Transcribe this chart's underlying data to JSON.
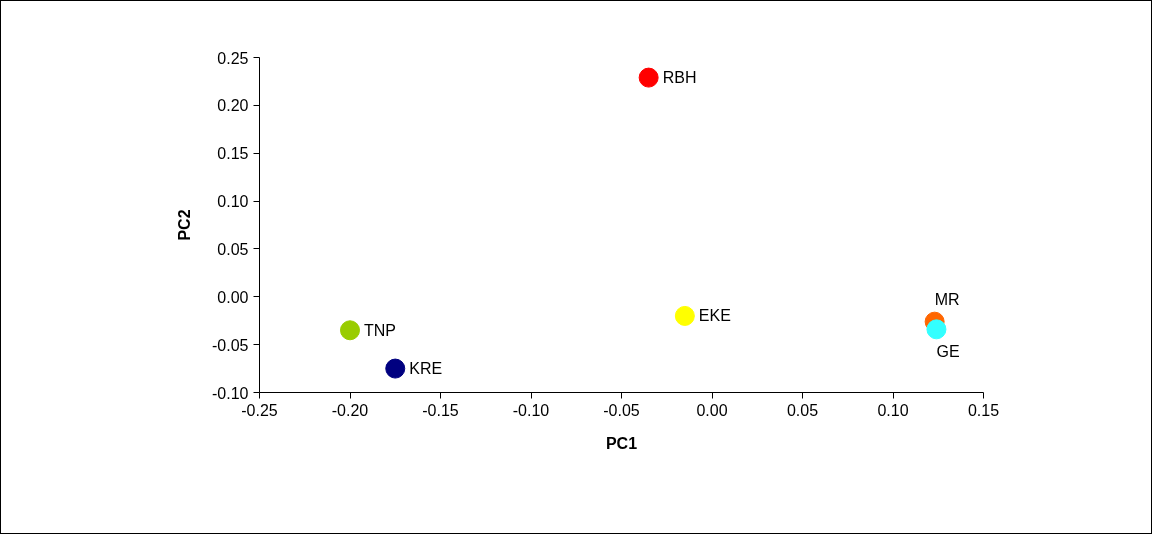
{
  "chart_data": {
    "type": "scatter",
    "xlabel": "PC1",
    "ylabel": "PC2",
    "xlim": [
      -0.25,
      0.15
    ],
    "ylim": [
      -0.1,
      0.25
    ],
    "xticks": [
      {
        "value": -0.25,
        "label": "-0.25"
      },
      {
        "value": -0.2,
        "label": "-0.20"
      },
      {
        "value": -0.15,
        "label": "-0.15"
      },
      {
        "value": -0.1,
        "label": "-0.10"
      },
      {
        "value": -0.05,
        "label": "-0.05"
      },
      {
        "value": 0,
        "label": "0.00"
      },
      {
        "value": 0.05,
        "label": "0.05"
      },
      {
        "value": 0.1,
        "label": "0.10"
      },
      {
        "value": 0.15,
        "label": "0.15"
      }
    ],
    "yticks": [
      {
        "value": -0.1,
        "label": "-0.10"
      },
      {
        "value": -0.05,
        "label": "-0.05"
      },
      {
        "value": 0,
        "label": "0.00"
      },
      {
        "value": 0.05,
        "label": "0.05"
      },
      {
        "value": 0.1,
        "label": "0.10"
      },
      {
        "value": 0.15,
        "label": "0.15"
      },
      {
        "value": 0.2,
        "label": "0.20"
      },
      {
        "value": 0.25,
        "label": "0.25"
      }
    ],
    "grid": false,
    "marker": "circle",
    "series": [
      {
        "name": "RBH",
        "color": "#ff0000",
        "x": [
          -0.035
        ],
        "values": [
          0.229
        ]
      },
      {
        "name": "TNP",
        "color": "#99cc00",
        "x": [
          -0.2
        ],
        "values": [
          -0.035
        ]
      },
      {
        "name": "KRE",
        "color": "#000080",
        "x": [
          -0.175
        ],
        "values": [
          -0.075
        ]
      },
      {
        "name": "EKE",
        "color": "#ffff00",
        "x": [
          -0.015
        ],
        "values": [
          -0.02
        ]
      },
      {
        "name": "MR",
        "color": "#ff6600",
        "x": [
          0.123
        ],
        "values": [
          -0.026
        ]
      },
      {
        "name": "GE",
        "color": "#33ffff",
        "x": [
          0.124
        ],
        "values": [
          -0.034
        ]
      }
    ]
  }
}
